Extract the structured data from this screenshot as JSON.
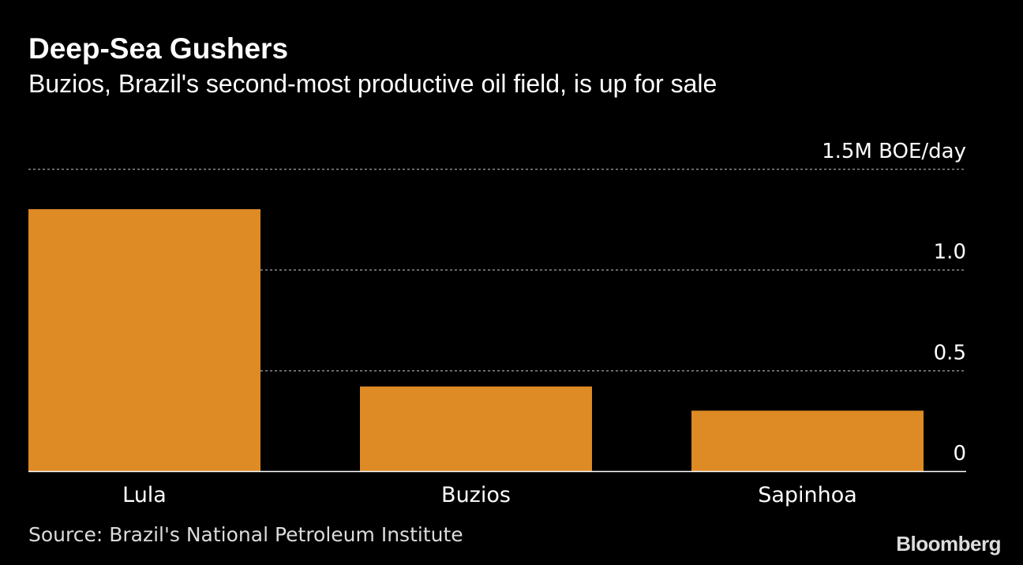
{
  "header": {
    "title": "Deep-Sea Gushers",
    "subtitle": "Buzios, Brazil's second-most productive oil field, is up for sale"
  },
  "chart_data": {
    "type": "bar",
    "categories": [
      "Lula",
      "Buzios",
      "Sapinhoa"
    ],
    "values": [
      1.3,
      0.42,
      0.3
    ],
    "ylim": [
      0,
      1.5
    ],
    "yticks": [
      {
        "value": 0,
        "label": "0"
      },
      {
        "value": 0.5,
        "label": "0.5"
      },
      {
        "value": 1.0,
        "label": "1.0"
      },
      {
        "value": 1.5,
        "label": "1.5M BOE/day"
      }
    ],
    "grid": true,
    "bar_color": "#de8a25",
    "gridline_color": "#8a8a8a",
    "baseline_color": "#ffffff"
  },
  "footer": {
    "source": "Source: Brazil's National Petroleum Institute",
    "brand": "Bloomberg"
  }
}
